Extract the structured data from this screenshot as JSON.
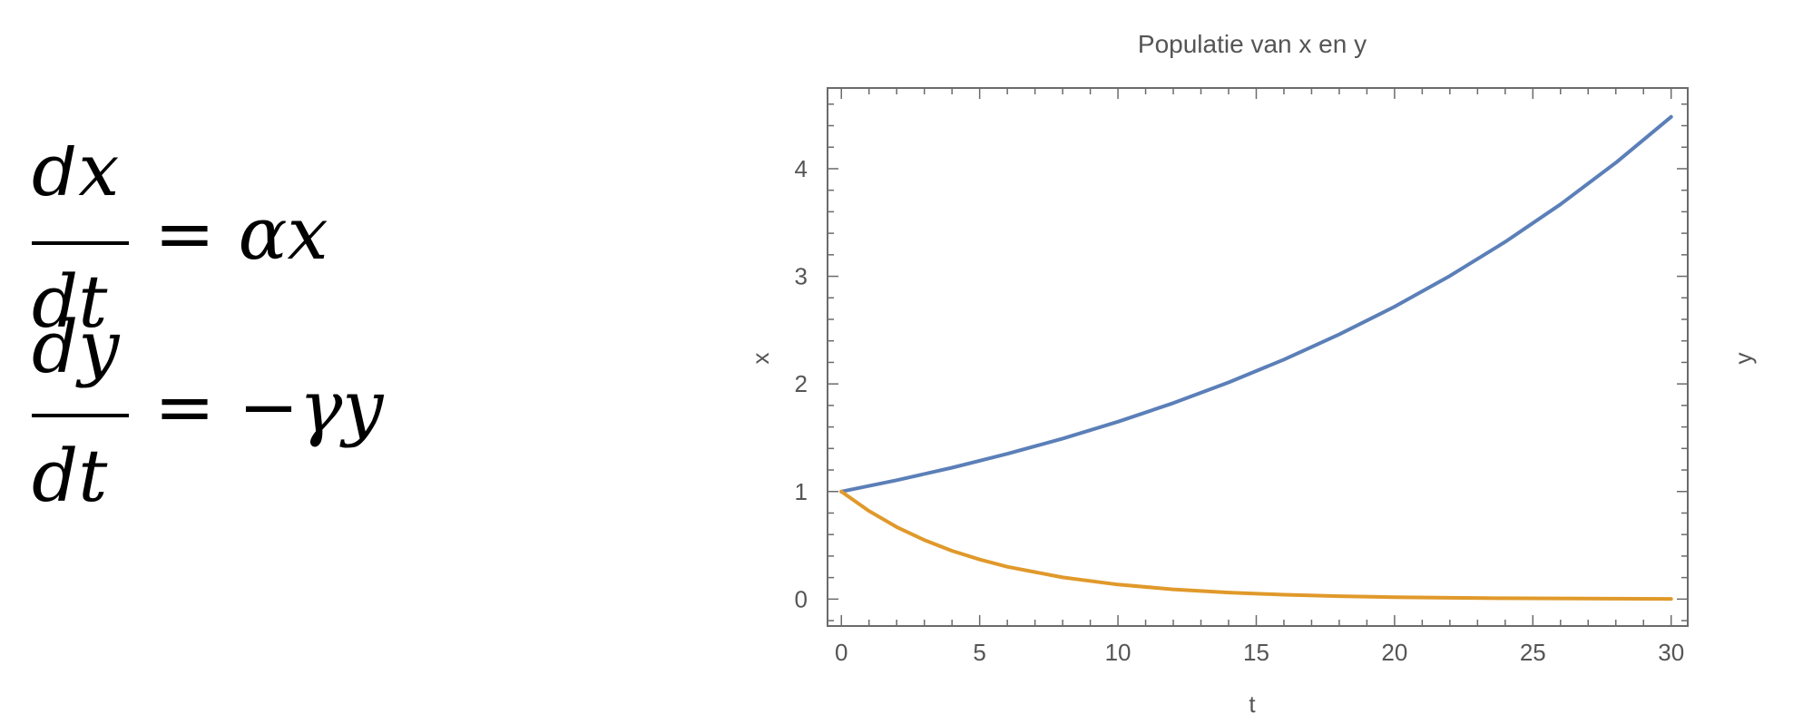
{
  "equations": {
    "eq1": {
      "numerator": "dx",
      "denominator": "dt",
      "rhs": "= αx"
    },
    "eq2": {
      "numerator": "dy",
      "denominator": "dt",
      "rhs": "= −γy"
    }
  },
  "chart_data": {
    "type": "line",
    "title": "Populatie van x en y",
    "xlabel": "t",
    "ylabel": "x",
    "ylabel_right": "y",
    "xlim": [
      -0.5,
      30.6
    ],
    "ylim": [
      -0.25,
      4.75
    ],
    "xticks": [
      0,
      5,
      10,
      15,
      20,
      25,
      30
    ],
    "yticks": [
      0,
      1,
      2,
      3,
      4
    ],
    "grid": false,
    "frame": true,
    "colors": {
      "axis": "#6b6b6b",
      "text": "#555555"
    },
    "series": [
      {
        "color": "#5b7fb8",
        "x": [
          0,
          2,
          4,
          6,
          8,
          10,
          12,
          14,
          16,
          18,
          20,
          22,
          24,
          26,
          28,
          30
        ],
        "y": [
          1.0,
          1.105,
          1.221,
          1.35,
          1.492,
          1.649,
          1.822,
          2.014,
          2.226,
          2.46,
          2.718,
          3.004,
          3.32,
          3.669,
          4.055,
          4.482
        ]
      },
      {
        "color": "#e0992a",
        "x": [
          0,
          1,
          2,
          3,
          4,
          5,
          6,
          8,
          10,
          12,
          14,
          16,
          18,
          20,
          22,
          24,
          26,
          28,
          30
        ],
        "y": [
          1.0,
          0.819,
          0.67,
          0.549,
          0.449,
          0.368,
          0.301,
          0.202,
          0.135,
          0.091,
          0.061,
          0.041,
          0.027,
          0.018,
          0.012,
          0.008,
          0.006,
          0.004,
          0.002
        ]
      }
    ]
  }
}
